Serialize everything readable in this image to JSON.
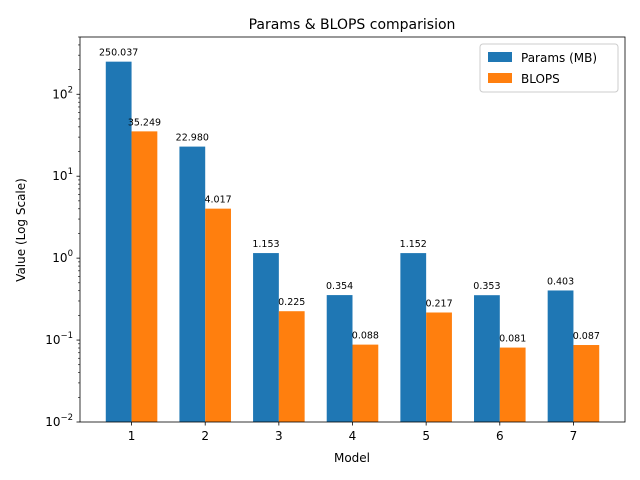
{
  "chart_data": {
    "type": "bar",
    "title": "Params & BLOPS comparision",
    "xlabel": "Model",
    "ylabel": "Value (Log Scale)",
    "yscale": "log",
    "ylim": [
      0.01,
      500
    ],
    "categories": [
      "1",
      "2",
      "3",
      "4",
      "5",
      "6",
      "7"
    ],
    "series": [
      {
        "name": "Params (MB)",
        "color": "#1f77b4",
        "values": [
          250.037,
          22.98,
          1.153,
          0.354,
          1.152,
          0.353,
          0.403
        ],
        "labels": [
          "250.037",
          "22.980",
          "1.153",
          "0.354",
          "1.152",
          "0.353",
          "0.403"
        ]
      },
      {
        "name": "BLOPS",
        "color": "#ff7f0e",
        "values": [
          35.249,
          4.017,
          0.225,
          0.088,
          0.217,
          0.081,
          0.087
        ],
        "labels": [
          "35.249",
          "4.017",
          "0.225",
          "0.088",
          "0.217",
          "0.081",
          "0.087"
        ]
      }
    ],
    "y_ticks": [
      {
        "value": 0.01,
        "base": "10",
        "exp": "−2"
      },
      {
        "value": 0.1,
        "base": "10",
        "exp": "−1"
      },
      {
        "value": 1,
        "base": "10",
        "exp": "0"
      },
      {
        "value": 10,
        "base": "10",
        "exp": "1"
      },
      {
        "value": 100,
        "base": "10",
        "exp": "2"
      }
    ],
    "legend": {
      "position": "top-right"
    },
    "grid": false
  }
}
